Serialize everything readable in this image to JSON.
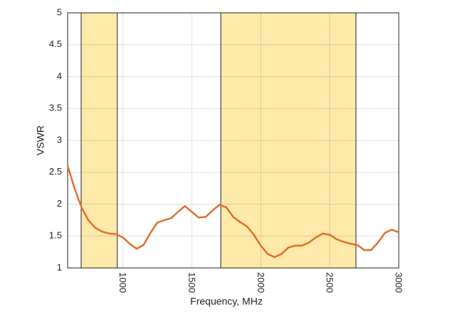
{
  "chart_data": {
    "type": "line",
    "xlabel": "Frequency, MHz",
    "ylabel": "VSWR",
    "x": [
      600,
      650,
      700,
      750,
      800,
      850,
      900,
      950,
      1000,
      1050,
      1100,
      1150,
      1200,
      1250,
      1300,
      1350,
      1400,
      1450,
      1500,
      1550,
      1600,
      1650,
      1700,
      1750,
      1800,
      1850,
      1900,
      1950,
      2000,
      2050,
      2100,
      2150,
      2200,
      2250,
      2300,
      2350,
      2400,
      2450,
      2500,
      2550,
      2600,
      2650,
      2700,
      2750,
      2800,
      2850,
      2900,
      2950,
      3000
    ],
    "series": [
      {
        "color": "#e0702a",
        "values": [
          2.6,
          2.25,
          1.95,
          1.75,
          1.63,
          1.57,
          1.54,
          1.53,
          1.48,
          1.38,
          1.3,
          1.36,
          1.55,
          1.71,
          1.75,
          1.78,
          1.88,
          1.97,
          1.88,
          1.79,
          1.8,
          1.9,
          1.99,
          1.95,
          1.8,
          1.72,
          1.65,
          1.52,
          1.35,
          1.22,
          1.17,
          1.22,
          1.32,
          1.35,
          1.35,
          1.4,
          1.48,
          1.54,
          1.52,
          1.45,
          1.41,
          1.38,
          1.36,
          1.28,
          1.28,
          1.4,
          1.55,
          1.6,
          1.56
        ]
      }
    ],
    "bands": [
      [
        698,
        960
      ],
      [
        1710,
        2690
      ]
    ],
    "band_color": "#fde9a9",
    "xlim": [
      600,
      3000
    ],
    "xticks": [
      1000,
      1500,
      2000,
      2500,
      3000
    ],
    "ylim": [
      1,
      5
    ],
    "yticks": [
      1,
      1.5,
      2,
      2.5,
      3,
      3.5,
      4,
      4.5,
      5
    ],
    "grid": true
  }
}
